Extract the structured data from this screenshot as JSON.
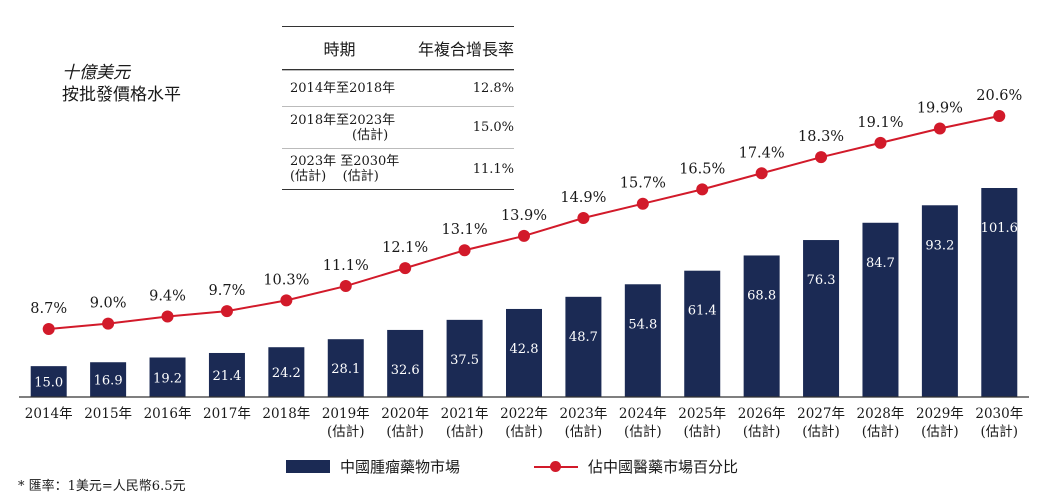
{
  "unit_line1": "十億美元",
  "unit_line2": "按批發價格水平",
  "cagr_table": {
    "header_period": "時期",
    "header_rate": "年複合增長率",
    "rows": [
      {
        "period_line1": "2014年至2018年",
        "period_line2": "",
        "rate": "12.8%"
      },
      {
        "period_line1": "2018年至2023年",
        "period_line2": "(估計)",
        "rate": "15.0%"
      },
      {
        "period_line1": "2023年 至2030年",
        "period_line2": "(估計)    (估計)",
        "rate": "11.1%"
      }
    ]
  },
  "legend": {
    "bar_label": "中國腫瘤藥物市場",
    "line_label": "佔中國醫藥市場百分比"
  },
  "footnote": "* 匯率：1美元=人民幣6.5元",
  "colors": {
    "bar": "#1b2a54",
    "line": "#d21a2a",
    "axis": "#333333"
  },
  "chart_data": {
    "type": "bar",
    "categories": [
      "2014年",
      "2015年",
      "2016年",
      "2017年",
      "2018年",
      "2019年",
      "2020年",
      "2021年",
      "2022年",
      "2023年",
      "2024年",
      "2025年",
      "2026年",
      "2027年",
      "2028年",
      "2029年",
      "2030年"
    ],
    "category_sublabels": [
      "",
      "",
      "",
      "",
      "",
      "(估計)",
      "(估計)",
      "(估計)",
      "(估計)",
      "(估計)",
      "(估計)",
      "(估計)",
      "(估計)",
      "(估計)",
      "(估計)",
      "(估計)",
      "(估計)"
    ],
    "series": [
      {
        "name": "中國腫瘤藥物市場",
        "type": "bar",
        "values": [
          15.0,
          16.9,
          19.2,
          21.4,
          24.2,
          28.1,
          32.6,
          37.5,
          42.8,
          48.7,
          54.8,
          61.4,
          68.8,
          76.3,
          84.7,
          93.2,
          101.6
        ],
        "labels": [
          "15.0",
          "16.9",
          "19.2",
          "21.4",
          "24.2",
          "28.1",
          "32.6",
          "37.5",
          "42.8",
          "48.7",
          "54.8",
          "61.4",
          "68.8",
          "76.3",
          "84.7",
          "93.2",
          "101.6"
        ]
      },
      {
        "name": "佔中國醫藥市場百分比",
        "type": "line",
        "values": [
          8.7,
          9.0,
          9.4,
          9.7,
          10.3,
          11.1,
          12.1,
          13.1,
          13.9,
          14.9,
          15.7,
          16.5,
          17.4,
          18.3,
          19.1,
          19.9,
          20.6
        ],
        "labels": [
          "8.7%",
          "9.0%",
          "9.4%",
          "9.7%",
          "10.3%",
          "11.1%",
          "12.1%",
          "13.1%",
          "13.9%",
          "14.9%",
          "15.7%",
          "16.5%",
          "17.4%",
          "18.3%",
          "19.1%",
          "19.9%",
          "20.6%"
        ]
      }
    ],
    "ylabel": "十億美元",
    "bar_ylim": [
      0,
      101.6
    ],
    "line_ylim": [
      8.7,
      20.6
    ]
  }
}
